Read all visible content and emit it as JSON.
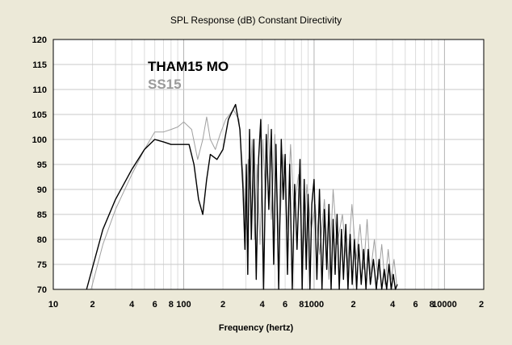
{
  "chart_data": {
    "type": "line",
    "title": "SPL Response (dB)   Constant Directivity",
    "xlabel": "Frequency (hertz)",
    "ylabel": "",
    "x_scale": "log",
    "xlim": [
      10,
      20000
    ],
    "ylim": [
      70,
      120
    ],
    "grid": true,
    "legend_position": "top-left",
    "x_ticks": [
      {
        "value": 10,
        "label": "10"
      },
      {
        "value": 20,
        "label": "2"
      },
      {
        "value": 40,
        "label": "4"
      },
      {
        "value": 60,
        "label": "6"
      },
      {
        "value": 80,
        "label": "8"
      },
      {
        "value": 100,
        "label": "100"
      },
      {
        "value": 200,
        "label": "2"
      },
      {
        "value": 400,
        "label": "4"
      },
      {
        "value": 600,
        "label": "6"
      },
      {
        "value": 800,
        "label": "8"
      },
      {
        "value": 1000,
        "label": "1000"
      },
      {
        "value": 2000,
        "label": "2"
      },
      {
        "value": 4000,
        "label": "4"
      },
      {
        "value": 6000,
        "label": "6"
      },
      {
        "value": 8000,
        "label": "8"
      },
      {
        "value": 10000,
        "label": "10000"
      },
      {
        "value": 20000,
        "label": "2"
      }
    ],
    "y_ticks": [
      {
        "value": 120,
        "label": "120"
      },
      {
        "value": 115,
        "label": "115"
      },
      {
        "value": 110,
        "label": "110"
      },
      {
        "value": 105,
        "label": "105"
      },
      {
        "value": 100,
        "label": "100"
      },
      {
        "value": 95,
        "label": "95"
      },
      {
        "value": 90,
        "label": "90"
      },
      {
        "value": 85,
        "label": "85"
      },
      {
        "value": 80,
        "label": "80"
      },
      {
        "value": 75,
        "label": "75"
      },
      {
        "value": 70,
        "label": "70"
      }
    ],
    "series": [
      {
        "name": "SS15",
        "color": "#a0a0a0",
        "x": [
          19.5,
          24,
          30,
          40,
          50,
          60,
          70,
          80,
          90,
          100,
          115,
          128,
          140,
          150,
          160,
          175,
          190,
          210,
          240,
          265,
          285,
          300,
          312,
          322,
          335,
          350,
          365,
          385,
          405,
          425,
          445,
          470,
          500,
          540,
          580,
          620,
          660,
          700,
          760,
          820,
          880,
          950,
          1020,
          1100,
          1200,
          1300,
          1400,
          1500,
          1650,
          1800,
          1950,
          2100,
          2250,
          2400,
          2550,
          2700,
          2900,
          3100,
          3300,
          3500,
          3700,
          3900,
          4100,
          4300
        ],
        "y": [
          70,
          79,
          86,
          93,
          98,
          101.5,
          101.5,
          102,
          102.5,
          103.5,
          102,
          96,
          100,
          104.5,
          100,
          98,
          101,
          104,
          106,
          104,
          93,
          82,
          96,
          90,
          100,
          80,
          95,
          79,
          100,
          88,
          103,
          84,
          101,
          80,
          97,
          82,
          99,
          86,
          93,
          76,
          91,
          82,
          87,
          77,
          88,
          72,
          90,
          79,
          85,
          74,
          87,
          76,
          83,
          74,
          84,
          73,
          80,
          72,
          79,
          71,
          78,
          72,
          76,
          71
        ]
      },
      {
        "name": "THAM15 MO",
        "color": "#000000",
        "x": [
          18,
          24,
          30,
          40,
          50,
          60,
          70,
          80,
          95,
          110,
          120,
          130,
          140,
          150,
          160,
          180,
          200,
          220,
          250,
          270,
          285,
          295,
          302,
          310,
          320,
          330,
          345,
          360,
          375,
          390,
          410,
          430,
          450,
          470,
          490,
          510,
          535,
          560,
          580,
          600,
          625,
          650,
          680,
          710,
          740,
          780,
          810,
          840,
          870,
          900,
          930,
          960,
          1000,
          1050,
          1100,
          1150,
          1200,
          1250,
          1300,
          1350,
          1400,
          1450,
          1500,
          1560,
          1620,
          1680,
          1750,
          1820,
          1890,
          1960,
          2040,
          2120,
          2200,
          2300,
          2400,
          2500,
          2600,
          2700,
          2850,
          3000,
          3150,
          3300,
          3450,
          3600,
          3750,
          3900,
          4050,
          4200,
          4350
        ],
        "y": [
          70,
          82,
          88,
          94,
          98,
          100,
          99.5,
          99,
          99,
          99,
          95,
          88,
          85,
          92,
          97,
          96,
          98,
          104,
          107,
          102,
          90,
          78,
          95,
          73,
          102,
          80,
          100,
          72,
          96,
          104,
          70,
          101,
          86,
          102,
          75,
          99,
          70,
          100,
          88,
          97,
          73,
          95,
          70,
          91,
          78,
          96,
          70,
          92,
          74,
          89,
          70,
          87,
          92,
          72,
          90,
          70,
          86,
          74,
          87,
          70,
          84,
          73,
          85,
          70,
          82,
          72,
          83,
          70,
          81,
          71,
          80,
          70,
          79,
          71,
          78,
          70,
          78,
          71,
          76,
          70,
          76,
          70,
          74,
          70,
          75,
          70,
          73,
          70,
          71
        ]
      }
    ]
  }
}
